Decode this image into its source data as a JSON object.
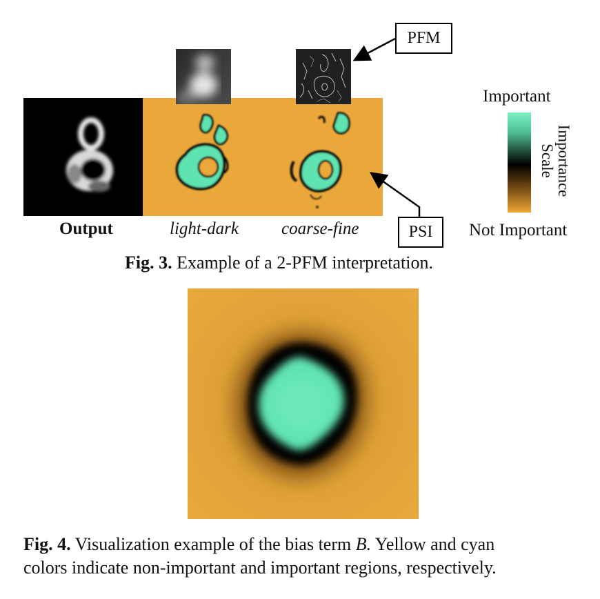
{
  "fig3": {
    "panels": {
      "output_label": "Output",
      "light_dark_label": "light-dark",
      "coarse_fine_label": "coarse-fine"
    },
    "callouts": {
      "pfm": "PFM",
      "psi": "PSI"
    },
    "legend": {
      "top_label": "Important",
      "bottom_label": "Not Important",
      "axis_line1": "Importance",
      "axis_line2": "Scale",
      "colors": [
        "#7ef0c4",
        "#1a3a2a",
        "#000000",
        "#6a4310",
        "#f0a836"
      ]
    },
    "caption_bold": "Fig. 3.",
    "caption_text": " Example of a 2-PFM interpretation."
  },
  "fig4": {
    "caption_bold": "Fig. 4.",
    "caption_line1_text": " Visualization example of the bias term ",
    "caption_italic": "B.",
    "caption_line1_tail": " Yellow and cyan",
    "caption_line2": "colors indicate non-important and important regions, respectively."
  },
  "colors": {
    "orange": "#eba83a",
    "cyan": "#5fe3b0",
    "black": "#000000"
  }
}
